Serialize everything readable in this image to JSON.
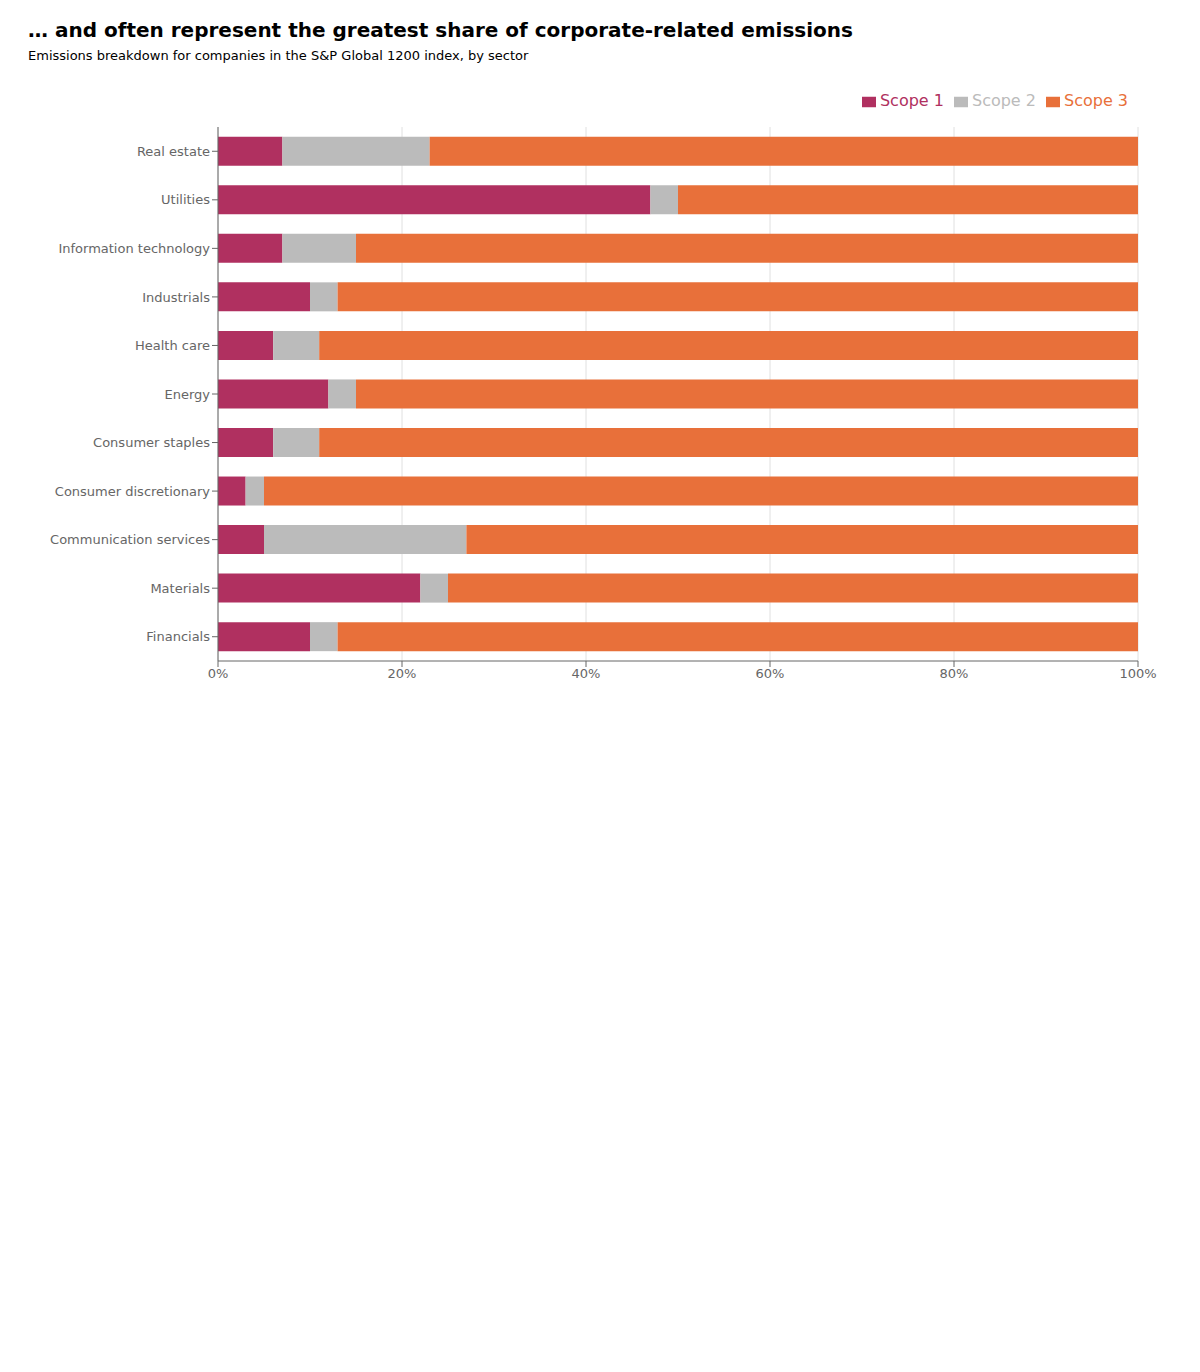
{
  "chart_data": {
    "type": "bar",
    "orientation": "horizontal",
    "stacked": true,
    "title": "… and often represent the greatest share of corporate-related emissions",
    "subtitle": "Emissions breakdown for companies in the S&P Global 1200 index, by sector",
    "categories": [
      "Real estate",
      "Utilities",
      "Information technology",
      "Industrials",
      "Health care",
      "Energy",
      "Consumer staples",
      "Consumer discretionary",
      "Communication services",
      "Materials",
      "Financials"
    ],
    "series": [
      {
        "name": "Scope 1",
        "color": "#B03060",
        "values": [
          7,
          47,
          7,
          10,
          6,
          12,
          6,
          3,
          5,
          22,
          10
        ]
      },
      {
        "name": "Scope 2",
        "color": "#BBBBBB",
        "values": [
          16,
          3,
          8,
          3,
          5,
          3,
          5,
          2,
          22,
          3,
          3
        ]
      },
      {
        "name": "Scope 3",
        "color": "#E8703A",
        "values": [
          77,
          50,
          85,
          87,
          89,
          85,
          89,
          95,
          73,
          75,
          87
        ]
      }
    ],
    "xlim": [
      0,
      100
    ],
    "xticks": [
      {
        "value": 0,
        "label": "0%"
      },
      {
        "value": 20,
        "label": "20%"
      },
      {
        "value": 40,
        "label": "40%"
      },
      {
        "value": 60,
        "label": "60%"
      },
      {
        "value": 80,
        "label": "80%"
      },
      {
        "value": 100,
        "label": "100%"
      }
    ],
    "grid": true,
    "legend": "upper right"
  }
}
